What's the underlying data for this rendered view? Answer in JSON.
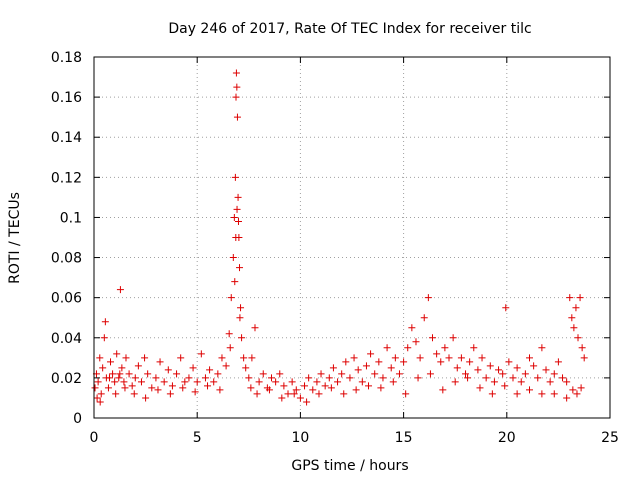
{
  "chart_data": {
    "type": "scatter",
    "title": "Day 246 of 2017, Rate Of TEC Index for receiver tilc",
    "xlabel": "GPS time / hours",
    "ylabel": "ROTI / TECUs",
    "xlim": [
      0,
      25
    ],
    "ylim": [
      0,
      0.18
    ],
    "grid": true,
    "marker": "+",
    "color": "#dd0000",
    "x_ticks": [
      0,
      5,
      10,
      15,
      20,
      25
    ],
    "x_tick_labels": [
      "0",
      "5",
      "10",
      "15",
      "20",
      "25"
    ],
    "y_ticks": [
      0,
      0.02,
      0.04,
      0.06,
      0.08,
      0.1,
      0.12,
      0.14,
      0.16,
      0.18
    ],
    "y_tick_labels": [
      "0",
      "0.02",
      "0.04",
      "0.06",
      "0.08",
      "0.1",
      "0.12",
      "0.14",
      "0.16",
      "0.18"
    ],
    "series": [
      {
        "name": "ROTI",
        "x": [
          0.05,
          0.12,
          0.2,
          0.28,
          0.35,
          0.42,
          0.5,
          0.6,
          0.7,
          0.8,
          0.9,
          1.0,
          1.1,
          1.2,
          1.28,
          1.35,
          1.45,
          1.55,
          1.7,
          1.85,
          2.0,
          2.15,
          2.3,
          2.45,
          2.6,
          2.8,
          3.0,
          3.2,
          3.4,
          3.6,
          3.8,
          4.0,
          4.2,
          4.4,
          4.6,
          4.8,
          5.0,
          5.2,
          5.4,
          5.6,
          5.8,
          6.0,
          6.2,
          6.4,
          6.55,
          6.65,
          6.75,
          6.8,
          6.85,
          6.88,
          6.9,
          6.92,
          6.95,
          6.98,
          7.0,
          7.02,
          7.05,
          7.1,
          7.15,
          7.25,
          7.35,
          7.5,
          7.65,
          7.8,
          8.0,
          8.2,
          8.4,
          8.6,
          8.8,
          9.0,
          9.2,
          9.4,
          9.6,
          9.8,
          10.0,
          10.2,
          10.4,
          10.6,
          10.8,
          11.0,
          11.2,
          11.4,
          11.6,
          11.8,
          12.0,
          12.2,
          12.4,
          12.6,
          12.8,
          13.0,
          13.2,
          13.4,
          13.6,
          13.8,
          14.0,
          14.2,
          14.4,
          14.6,
          14.8,
          15.0,
          15.2,
          15.4,
          15.6,
          15.8,
          16.0,
          16.2,
          16.4,
          16.6,
          16.8,
          17.0,
          17.2,
          17.4,
          17.6,
          17.8,
          18.0,
          18.2,
          18.4,
          18.6,
          18.8,
          19.0,
          19.2,
          19.4,
          19.6,
          19.8,
          19.95,
          20.1,
          20.3,
          20.5,
          20.7,
          20.9,
          21.1,
          21.3,
          21.5,
          21.7,
          21.9,
          22.1,
          22.3,
          22.5,
          22.7,
          22.9,
          23.05,
          23.15,
          23.25,
          23.35,
          23.45,
          23.55,
          23.65,
          23.75,
          0.15,
          0.3,
          0.55,
          0.75,
          1.05,
          1.25,
          1.5,
          1.95,
          2.5,
          3.1,
          3.7,
          4.3,
          4.9,
          5.5,
          6.1,
          6.6,
          6.82,
          6.87,
          6.93,
          7.07,
          7.6,
          7.9,
          8.5,
          9.1,
          9.7,
          10.3,
          10.9,
          11.5,
          12.1,
          12.7,
          13.3,
          13.9,
          14.5,
          15.1,
          15.7,
          16.3,
          16.9,
          17.5,
          18.1,
          18.7,
          19.3,
          19.9,
          20.5,
          21.1,
          21.7,
          22.3,
          22.9,
          23.2,
          23.4,
          23.6
        ],
        "y": [
          0.015,
          0.022,
          0.018,
          0.03,
          0.012,
          0.025,
          0.04,
          0.02,
          0.015,
          0.028,
          0.022,
          0.018,
          0.032,
          0.02,
          0.064,
          0.025,
          0.018,
          0.03,
          0.022,
          0.016,
          0.02,
          0.026,
          0.018,
          0.03,
          0.022,
          0.015,
          0.02,
          0.028,
          0.018,
          0.024,
          0.016,
          0.022,
          0.03,
          0.018,
          0.02,
          0.025,
          0.018,
          0.032,
          0.02,
          0.024,
          0.018,
          0.022,
          0.03,
          0.026,
          0.042,
          0.06,
          0.08,
          0.1,
          0.12,
          0.16,
          0.172,
          0.165,
          0.15,
          0.11,
          0.098,
          0.09,
          0.075,
          0.055,
          0.04,
          0.03,
          0.025,
          0.02,
          0.03,
          0.045,
          0.018,
          0.022,
          0.015,
          0.02,
          0.018,
          0.022,
          0.016,
          0.012,
          0.018,
          0.014,
          0.01,
          0.016,
          0.02,
          0.014,
          0.018,
          0.022,
          0.016,
          0.02,
          0.025,
          0.018,
          0.022,
          0.028,
          0.02,
          0.03,
          0.024,
          0.018,
          0.026,
          0.032,
          0.022,
          0.028,
          0.02,
          0.035,
          0.025,
          0.03,
          0.022,
          0.028,
          0.035,
          0.045,
          0.038,
          0.03,
          0.05,
          0.06,
          0.04,
          0.032,
          0.028,
          0.035,
          0.03,
          0.04,
          0.025,
          0.03,
          0.022,
          0.028,
          0.035,
          0.024,
          0.03,
          0.02,
          0.026,
          0.018,
          0.024,
          0.022,
          0.055,
          0.028,
          0.02,
          0.025,
          0.018,
          0.022,
          0.03,
          0.026,
          0.02,
          0.035,
          0.024,
          0.018,
          0.022,
          0.028,
          0.02,
          0.018,
          0.06,
          0.05,
          0.045,
          0.055,
          0.04,
          0.06,
          0.035,
          0.03,
          0.01,
          0.008,
          0.048,
          0.02,
          0.012,
          0.022,
          0.015,
          0.012,
          0.01,
          0.014,
          0.012,
          0.015,
          0.013,
          0.016,
          0.014,
          0.035,
          0.068,
          0.09,
          0.104,
          0.05,
          0.015,
          0.012,
          0.014,
          0.01,
          0.012,
          0.008,
          0.012,
          0.015,
          0.012,
          0.014,
          0.016,
          0.015,
          0.018,
          0.012,
          0.02,
          0.022,
          0.014,
          0.018,
          0.02,
          0.015,
          0.012,
          0.016,
          0.012,
          0.014,
          0.012,
          0.012,
          0.01,
          0.014,
          0.012,
          0.015
        ]
      }
    ]
  }
}
